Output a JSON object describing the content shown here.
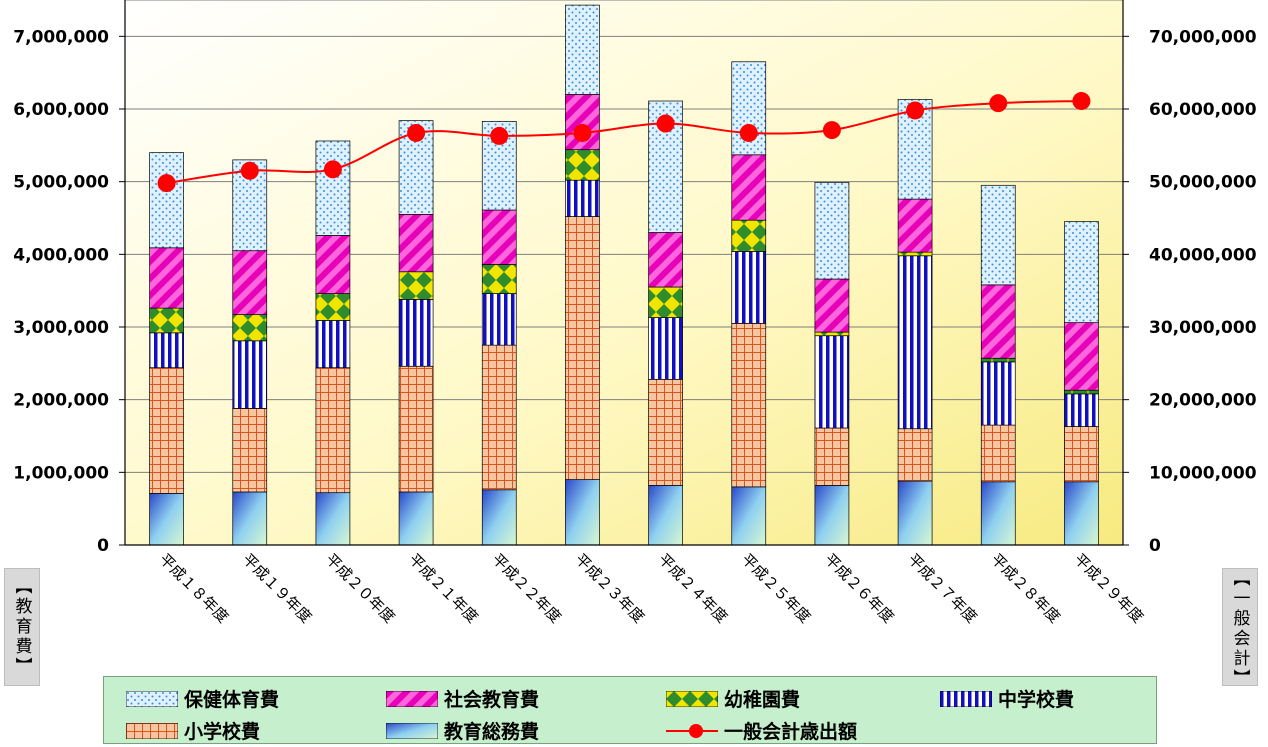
{
  "chart_data": {
    "type": "bar",
    "stacked": true,
    "title": "",
    "categories": [
      "平成１８年度",
      "平成１９年度",
      "平成２０年度",
      "平成２１年度",
      "平成２２年度",
      "平成２３年度",
      "平成２４年度",
      "平成２５年度",
      "平成２６年度",
      "平成２７年度",
      "平成２８年度",
      "平成２９年度"
    ],
    "series": [
      {
        "name": "教育総務費",
        "color": "#3b5bdc",
        "values": [
          710000,
          730000,
          720000,
          730000,
          760000,
          900000,
          820000,
          800000,
          820000,
          880000,
          870000,
          870000
        ]
      },
      {
        "name": "小学校費",
        "color": "#f4b183",
        "values": [
          1730000,
          1150000,
          1720000,
          1730000,
          1990000,
          3620000,
          1460000,
          2250000,
          790000,
          720000,
          780000,
          760000
        ]
      },
      {
        "name": "中学校費",
        "color": "#1f1fbf",
        "values": [
          480000,
          930000,
          650000,
          920000,
          710000,
          500000,
          850000,
          990000,
          1270000,
          2380000,
          870000,
          450000
        ]
      },
      {
        "name": "幼稚園費",
        "color": "#f2e600",
        "values": [
          340000,
          360000,
          370000,
          380000,
          400000,
          420000,
          420000,
          430000,
          50000,
          50000,
          50000,
          50000
        ]
      },
      {
        "name": "社会教育費",
        "color": "#ff33cc",
        "values": [
          830000,
          880000,
          800000,
          790000,
          750000,
          760000,
          750000,
          900000,
          730000,
          730000,
          1010000,
          930000
        ]
      },
      {
        "name": "保健体育費",
        "color": "#bfe4ff",
        "values": [
          1310000,
          1250000,
          1300000,
          1290000,
          1220000,
          1230000,
          1810000,
          1280000,
          1330000,
          1370000,
          1370000,
          1390000
        ]
      }
    ],
    "line_series": {
      "name": "一般会計歳出額",
      "color": "#ff0000",
      "axis": "right",
      "values": [
        49800000,
        51500000,
        51700000,
        56700000,
        56300000,
        56700000,
        58000000,
        56700000,
        57100000,
        59800000,
        60800000,
        61100000
      ]
    },
    "left_axis": {
      "label": "【教育費】",
      "min": 0,
      "max": 7500000,
      "ticks": [
        0,
        1000000,
        2000000,
        3000000,
        4000000,
        5000000,
        6000000,
        7000000
      ],
      "tick_labels": [
        "0",
        "1,000,000",
        "2,000,000",
        "3,000,000",
        "4,000,000",
        "5,000,000",
        "6,000,000",
        "7,000,000"
      ]
    },
    "right_axis": {
      "label": "【一般会計】",
      "min": 0,
      "max": 75000000,
      "ticks": [
        0,
        10000000,
        20000000,
        30000000,
        40000000,
        50000000,
        60000000,
        70000000
      ],
      "tick_labels": [
        "0",
        "10,000,000",
        "20,000,000",
        "30,000,000",
        "40,000,000",
        "50,000,000",
        "60,000,000",
        "70,000,000"
      ]
    },
    "grid": true,
    "legend_position": "bottom"
  },
  "legend": {
    "items": [
      {
        "label": "保健体育費"
      },
      {
        "label": "社会教育費"
      },
      {
        "label": "幼稚園費"
      },
      {
        "label": "中学校費"
      },
      {
        "label": "小学校費"
      },
      {
        "label": "教育総務費"
      },
      {
        "label": "一般会計歳出額"
      }
    ]
  }
}
